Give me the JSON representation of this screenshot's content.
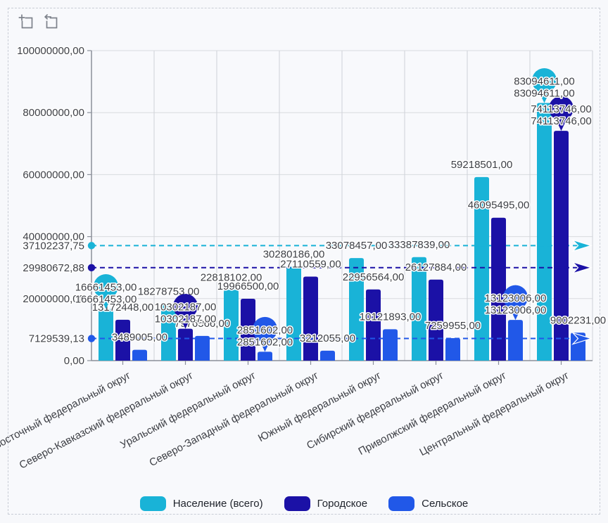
{
  "toolbar": {
    "icons": [
      "box-zoom-icon",
      "undo-zoom-icon"
    ]
  },
  "chart_data": {
    "type": "bar",
    "title": "",
    "categories": [
      "Дальневосточный федеральный округ",
      "Северо-Кавказский федеральный округ",
      "Уральский федеральный округ",
      "Северо-Западный федеральный округ",
      "Южный федеральный округ",
      "Сибирский федеральный округ",
      "Приволжский федеральный округ",
      "Центральный федеральный округ"
    ],
    "series": [
      {
        "name": "Население (всего)",
        "color": "#19b3d7",
        "values": [
          16661453,
          18278753,
          22818102,
          30280186,
          33078457,
          33387839,
          59218501,
          83094611
        ],
        "value_labels": [
          "16661453,00",
          "18278753,00",
          "22818102,00",
          "30280186,00",
          "33078457,00",
          "33387839,00",
          "59218501,00",
          "83094611,00"
        ],
        "average_value": 37102237.75,
        "average_label": "37102237,75",
        "pin_markers": [
          0,
          7
        ]
      },
      {
        "name": "Городское",
        "color": "#1b11a6",
        "values": [
          13172448,
          10302187,
          19966500,
          27110559,
          22956564,
          26127884,
          46095495,
          74113746
        ],
        "value_labels": [
          "13172448,00",
          "10302187,00",
          "19966500,00",
          "27110559,00",
          "22956564,00",
          "26127884,00",
          "46095495,00",
          "74113746,00"
        ],
        "average_value": 29980672.88,
        "average_label": "29980672,88",
        "pin_markers": [
          1,
          7
        ]
      },
      {
        "name": "Сельское",
        "color": "#2158e8",
        "values": [
          3489005,
          7976566,
          2851602,
          3212055,
          10121893,
          7259955,
          13123006,
          9002231
        ],
        "value_labels": [
          "3489005,00",
          "7976566,00",
          "2851602,00",
          "3212055,00",
          "10121893,00",
          "7259955,00",
          "13123006,00",
          "9002231,00"
        ],
        "average_value": 7129539.13,
        "average_label": "7129539,13",
        "pin_markers": [
          2,
          6
        ]
      }
    ],
    "y_axis": {
      "range": [
        0,
        100000000
      ],
      "grid": true,
      "ticks": [
        {
          "value": 0,
          "label": "0,00"
        },
        {
          "value": 20000000,
          "label": "20000000,00"
        },
        {
          "value": 40000000,
          "label": "40000000,00"
        },
        {
          "value": 60000000,
          "label": "60000000,00"
        },
        {
          "value": 80000000,
          "label": "80000000,00"
        },
        {
          "value": 100000000,
          "label": "100000000,00"
        }
      ]
    },
    "legend_position": "bottom"
  }
}
